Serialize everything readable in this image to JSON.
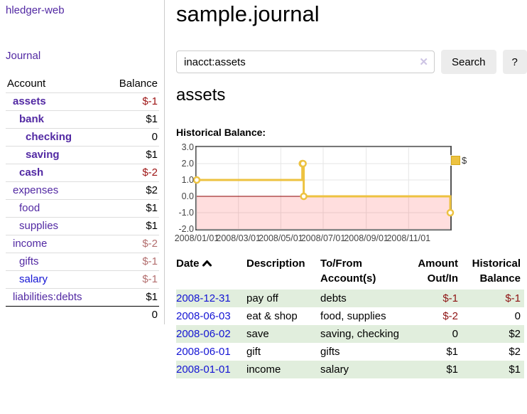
{
  "app": {
    "brand": "hledger-web",
    "nav_journal": "Journal"
  },
  "colors": {
    "link_purple": "#5229a3",
    "link_blue": "#1414d4",
    "negative_strong": "#9d1313",
    "negative_muted": "#b36e6e",
    "row_green": "#e1eedd",
    "chart_line": "#edc240",
    "chart_negative_fill": "rgba(255,0,0,0.13)",
    "chart_zero_line": "#8b0000"
  },
  "sidebar": {
    "header": {
      "account": "Account",
      "balance": "Balance"
    },
    "accounts": [
      {
        "name": "assets",
        "balance": "$-1"
      },
      {
        "name": "bank",
        "balance": "$1"
      },
      {
        "name": "checking",
        "balance": "0"
      },
      {
        "name": "saving",
        "balance": "$1"
      },
      {
        "name": "cash",
        "balance": "$-2"
      },
      {
        "name": "expenses",
        "balance": "$2"
      },
      {
        "name": "food",
        "balance": "$1"
      },
      {
        "name": "supplies",
        "balance": "$1"
      },
      {
        "name": "income",
        "balance": "$-2"
      },
      {
        "name": "gifts",
        "balance": "$-1"
      },
      {
        "name": "salary",
        "balance": "$-1"
      },
      {
        "name": "liabilities:debts",
        "balance": "$1"
      }
    ],
    "total": "0"
  },
  "header": {
    "title": "sample.journal"
  },
  "search": {
    "value": "inacct:assets",
    "clear_icon": "✕",
    "button_label": "Search",
    "help_label": "?"
  },
  "account_page": {
    "heading": "assets",
    "chart_title": "Historical Balance:"
  },
  "chart_data": {
    "type": "line",
    "step": true,
    "title": "Historical Balance:",
    "series": [
      {
        "name": "$",
        "points": [
          [
            "2008-01-01",
            1
          ],
          [
            "2008-06-01",
            2
          ],
          [
            "2008-06-02",
            2
          ],
          [
            "2008-06-03",
            0
          ],
          [
            "2008-12-31",
            -1
          ]
        ]
      }
    ],
    "x_range": [
      "2008-01-01",
      "2008-12-31"
    ],
    "ylim": [
      -2,
      3
    ],
    "x_ticks": [
      "2008/01/01",
      "2008/03/01",
      "2008/05/01",
      "2008/07/01",
      "2008/09/01",
      "2008/11/01"
    ],
    "y_ticks": [
      "3.0",
      "2.0",
      "1.0",
      "0.0",
      "-1.0",
      "-2.0"
    ],
    "legend": {
      "label": "$",
      "position": "top-right"
    },
    "grid": true
  },
  "register": {
    "columns": {
      "date": "Date",
      "description": "Description",
      "accounts": "To/From Account(s)",
      "amount": "Amount Out/In",
      "balance": "Historical Balance"
    },
    "sort": "ascending",
    "rows": [
      {
        "date": "2008-12-31",
        "description": "pay off",
        "accounts": "debts",
        "amount": "$-1",
        "balance": "$-1"
      },
      {
        "date": "2008-06-03",
        "description": "eat & shop",
        "accounts": "food, supplies",
        "amount": "$-2",
        "balance": "0"
      },
      {
        "date": "2008-06-02",
        "description": "save",
        "accounts": "saving, checking",
        "amount": "0",
        "balance": "$2"
      },
      {
        "date": "2008-06-01",
        "description": "gift",
        "accounts": "gifts",
        "amount": "$1",
        "balance": "$2"
      },
      {
        "date": "2008-01-01",
        "description": "income",
        "accounts": "salary",
        "amount": "$1",
        "balance": "$1"
      }
    ]
  }
}
